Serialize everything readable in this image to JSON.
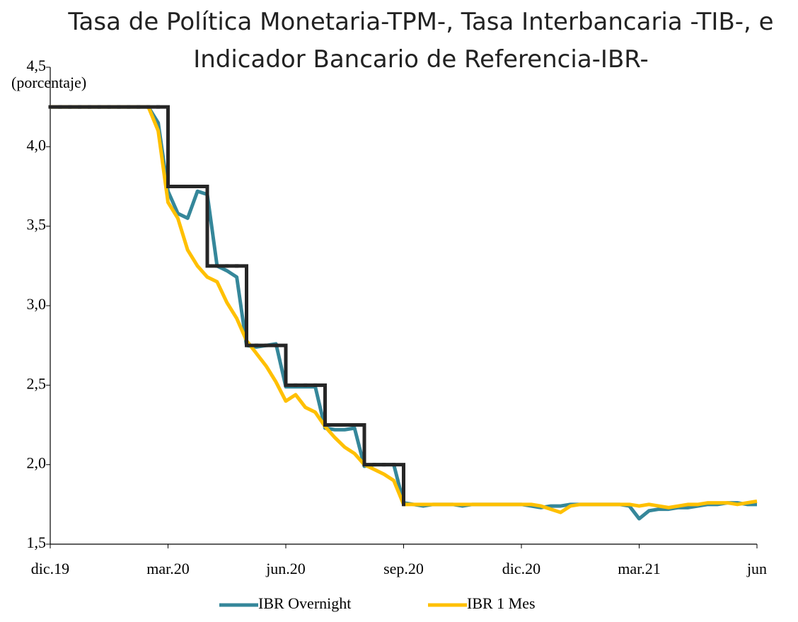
{
  "chart_data": {
    "type": "line",
    "title": [
      "Tasa de Política Monetaria-TPM-, Tasa Interbancaria -TIB-, e",
      "Indicador Bancario de Referencia-IBR-"
    ],
    "y_label": "(porcentaje)",
    "categories": [
      "dic.19",
      null,
      null,
      null,
      null,
      null,
      null,
      null,
      null,
      null,
      null,
      null,
      "mar.20",
      null,
      null,
      null,
      null,
      null,
      null,
      null,
      null,
      null,
      null,
      null,
      "jun.20",
      null,
      null,
      null,
      null,
      null,
      null,
      null,
      null,
      null,
      null,
      null,
      "sep.20",
      null,
      null,
      null,
      null,
      null,
      null,
      null,
      null,
      null,
      null,
      null,
      "dic.20",
      null,
      null,
      null,
      null,
      null,
      null,
      null,
      null,
      null,
      null,
      null,
      "mar.21",
      null,
      null,
      null,
      null,
      null,
      null,
      null,
      null,
      null,
      null,
      null,
      "jun"
    ],
    "ylim": [
      1.5,
      4.5
    ],
    "yticks": [
      {
        "value": 1.5,
        "label": "1,5"
      },
      {
        "value": 2.0,
        "label": "2,0"
      },
      {
        "value": 2.5,
        "label": "2,5"
      },
      {
        "value": 3.0,
        "label": "3,0"
      },
      {
        "value": 3.5,
        "label": "3,5"
      },
      {
        "value": 4.0,
        "label": "4,0"
      },
      {
        "value": 4.5,
        "label": "4,5"
      }
    ],
    "series": [
      {
        "name": "IBR Overnight",
        "color": "#35879a",
        "values": [
          4.25,
          4.25,
          4.25,
          4.25,
          4.25,
          4.25,
          4.25,
          4.25,
          4.25,
          4.25,
          4.25,
          4.15,
          3.72,
          3.58,
          3.55,
          3.72,
          3.7,
          3.25,
          3.22,
          3.18,
          2.75,
          2.74,
          2.75,
          2.76,
          2.49,
          2.49,
          2.49,
          2.49,
          2.23,
          2.22,
          2.22,
          2.23,
          1.99,
          2.0,
          2.0,
          2.0,
          1.76,
          1.75,
          1.74,
          1.75,
          1.75,
          1.75,
          1.74,
          1.75,
          1.75,
          1.75,
          1.75,
          1.75,
          1.75,
          1.74,
          1.73,
          1.74,
          1.74,
          1.75,
          1.75,
          1.75,
          1.75,
          1.75,
          1.75,
          1.74,
          1.66,
          1.71,
          1.72,
          1.72,
          1.73,
          1.73,
          1.74,
          1.75,
          1.75,
          1.76,
          1.76,
          1.75,
          1.75
        ]
      },
      {
        "name": "IBR 1 Mes",
        "color": "#ffc000",
        "values": [
          4.25,
          4.25,
          4.25,
          4.25,
          4.25,
          4.25,
          4.25,
          4.25,
          4.25,
          4.25,
          4.25,
          4.1,
          3.65,
          3.55,
          3.35,
          3.25,
          3.18,
          3.15,
          3.02,
          2.92,
          2.78,
          2.7,
          2.62,
          2.52,
          2.4,
          2.44,
          2.36,
          2.33,
          2.24,
          2.17,
          2.11,
          2.07,
          2.0,
          1.97,
          1.94,
          1.9,
          1.75,
          1.75,
          1.75,
          1.75,
          1.75,
          1.75,
          1.75,
          1.75,
          1.75,
          1.75,
          1.75,
          1.75,
          1.75,
          1.75,
          1.74,
          1.72,
          1.7,
          1.74,
          1.75,
          1.75,
          1.75,
          1.75,
          1.75,
          1.75,
          1.74,
          1.75,
          1.74,
          1.73,
          1.74,
          1.75,
          1.75,
          1.76,
          1.76,
          1.76,
          1.75,
          1.76,
          1.77
        ]
      },
      {
        "color": "#262626",
        "step": "after",
        "values": [
          4.25,
          4.25,
          4.25,
          4.25,
          4.25,
          4.25,
          4.25,
          4.25,
          4.25,
          4.25,
          4.25,
          4.25,
          3.75,
          3.75,
          3.75,
          3.75,
          3.25,
          3.25,
          3.25,
          3.25,
          2.75,
          2.75,
          2.75,
          2.75,
          2.5,
          2.5,
          2.5,
          2.5,
          2.25,
          2.25,
          2.25,
          2.25,
          2.0,
          2.0,
          2.0,
          2.0,
          1.75,
          null,
          null,
          null,
          null,
          null,
          null,
          null,
          null,
          null,
          null,
          null,
          null,
          null,
          null,
          null,
          null,
          null,
          null,
          null,
          null,
          null,
          null,
          null,
          null,
          null,
          null,
          null,
          null,
          null,
          null,
          null,
          null,
          null,
          null,
          null,
          null
        ]
      }
    ],
    "legend": "bottom"
  }
}
